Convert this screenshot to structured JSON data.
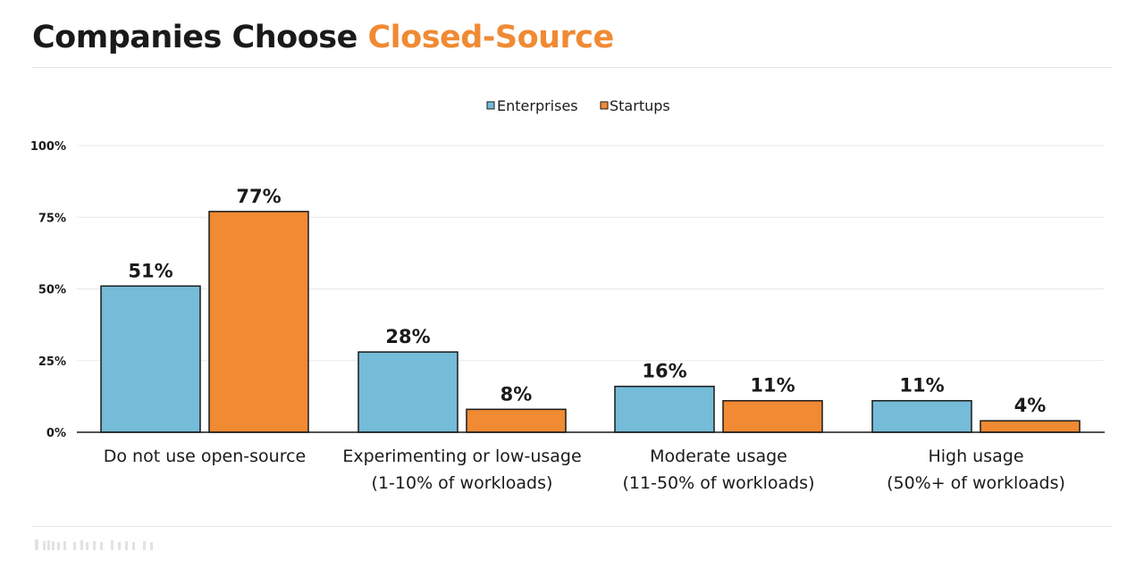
{
  "title": {
    "main": "Companies Choose ",
    "accent": "Closed-Source"
  },
  "colors": {
    "enterprises": "#74bcd7",
    "startups": "#f08a33",
    "accent": "#f08a33",
    "title": "#1a1a1a",
    "grid": "#e8e8e8",
    "axis": "#1a1a1a"
  },
  "chart_data": {
    "type": "bar",
    "categories": [
      [
        "Do not use open-source"
      ],
      [
        "Experimenting or low-usage",
        "(1-10% of workloads)"
      ],
      [
        "Moderate usage",
        "(11-50% of workloads)"
      ],
      [
        "High usage",
        "(50%+ of workloads)"
      ]
    ],
    "series": [
      {
        "name": "Enterprises",
        "color": "#74bcd7",
        "values": [
          51,
          28,
          16,
          11
        ]
      },
      {
        "name": "Startups",
        "color": "#f08a33",
        "values": [
          77,
          8,
          11,
          4
        ]
      }
    ],
    "data_labels": [
      [
        "51%",
        "28%",
        "16%",
        "11%"
      ],
      [
        "77%",
        "8%",
        "11%",
        "4%"
      ]
    ],
    "ylim": [
      0,
      100
    ],
    "yticks": [
      0,
      25,
      50,
      75,
      100
    ],
    "ytick_labels": [
      "0%",
      "25%",
      "50%",
      "75%",
      "100%"
    ],
    "legend_position": "top-center",
    "grid": true,
    "xlabel": "",
    "ylabel": ""
  }
}
